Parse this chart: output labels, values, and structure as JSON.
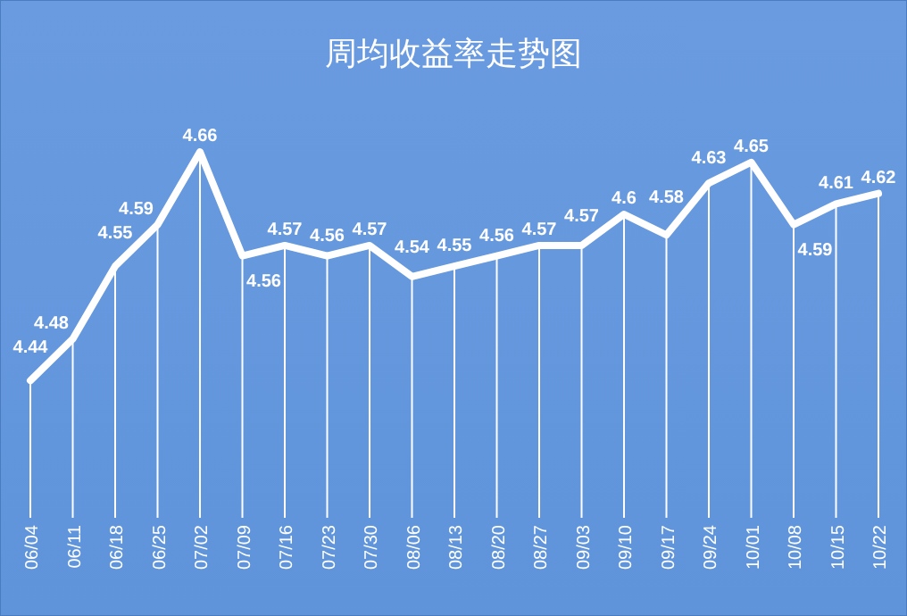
{
  "chart_data": {
    "type": "line",
    "title": "周均收益率走势图",
    "categories": [
      "06/04",
      "06/11",
      "06/18",
      "06/25",
      "07/02",
      "07/09",
      "07/16",
      "07/23",
      "07/30",
      "08/06",
      "08/13",
      "08/20",
      "08/27",
      "09/03",
      "09/10",
      "09/17",
      "09/24",
      "10/01",
      "10/08",
      "10/15",
      "10/22"
    ],
    "series": [
      {
        "color": "#ffffff",
        "values": [
          4.44,
          4.48,
          4.55,
          4.59,
          4.66,
          4.56,
          4.57,
          4.56,
          4.57,
          4.54,
          4.55,
          4.56,
          4.57,
          4.57,
          4.6,
          4.58,
          4.63,
          4.65,
          4.59,
          4.61,
          4.62
        ]
      }
    ],
    "relative": false,
    "data_labels": true,
    "grid": "x",
    "marker": "none",
    "line_style": "solid"
  }
}
